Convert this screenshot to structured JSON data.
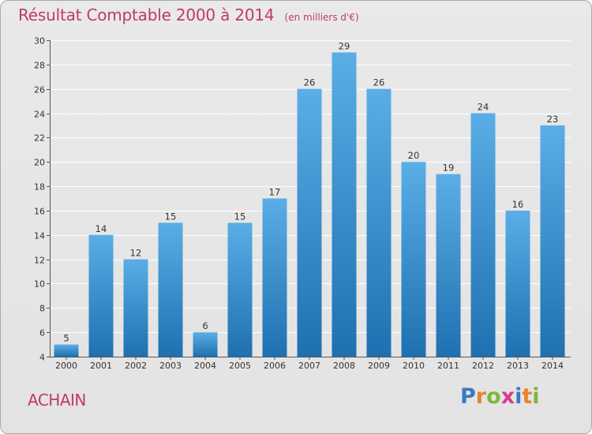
{
  "header": {
    "title": "Résultat Comptable 2000 à 2014",
    "subtitle": "(en milliers d'€)"
  },
  "footer": {
    "commune": "ACHAIN",
    "brand": "Proxiti",
    "brand_letters": [
      {
        "char": "P",
        "color": "#3a79c4"
      },
      {
        "char": "r",
        "color": "#e9832b"
      },
      {
        "char": "o",
        "color": "#7ab83a"
      },
      {
        "char": "x",
        "color": "#d93a8b"
      },
      {
        "char": "i",
        "color": "#3a79c4"
      },
      {
        "char": "t",
        "color": "#e9832b"
      },
      {
        "char": "i",
        "color": "#7ab83a"
      }
    ]
  },
  "chart_data": {
    "type": "bar",
    "title": "Résultat Comptable 2000 à 2014",
    "subtitle": "(en milliers d'€)",
    "xlabel": "",
    "ylabel": "",
    "categories": [
      "2000",
      "2001",
      "2002",
      "2003",
      "2004",
      "2005",
      "2006",
      "2007",
      "2008",
      "2009",
      "2010",
      "2011",
      "2012",
      "2013",
      "2014"
    ],
    "values": [
      5,
      14,
      12,
      15,
      6,
      15,
      17,
      26,
      29,
      26,
      20,
      19,
      24,
      16,
      23
    ],
    "ylim": [
      4,
      30
    ],
    "yticks": [
      4,
      6,
      8,
      10,
      12,
      14,
      16,
      18,
      20,
      22,
      24,
      26,
      28,
      30
    ],
    "grid": true,
    "bar_color_top": "#5aaee6",
    "bar_color_bottom": "#1f70b0",
    "value_labels": true
  }
}
